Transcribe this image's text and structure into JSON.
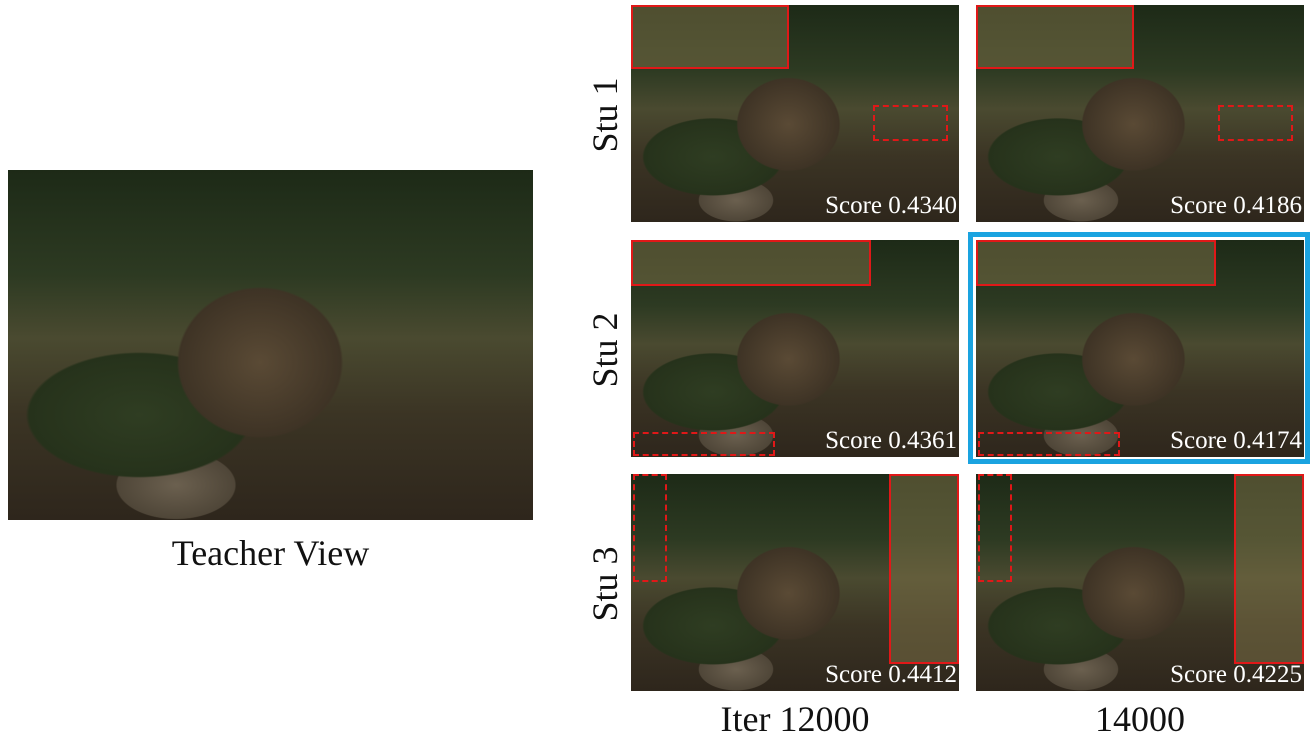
{
  "teacher": {
    "label": "Teacher View"
  },
  "columns": [
    "Iter 12000",
    "14000"
  ],
  "rows": [
    {
      "label": "Stu 1",
      "scores": [
        "Score 0.4340",
        "Score 0.4186"
      ]
    },
    {
      "label": "Stu 2",
      "scores": [
        "Score 0.4361",
        "Score 0.4174"
      ]
    },
    {
      "label": "Stu 3",
      "scores": [
        "Score 0.4412",
        "Score 0.4225"
      ]
    }
  ]
}
